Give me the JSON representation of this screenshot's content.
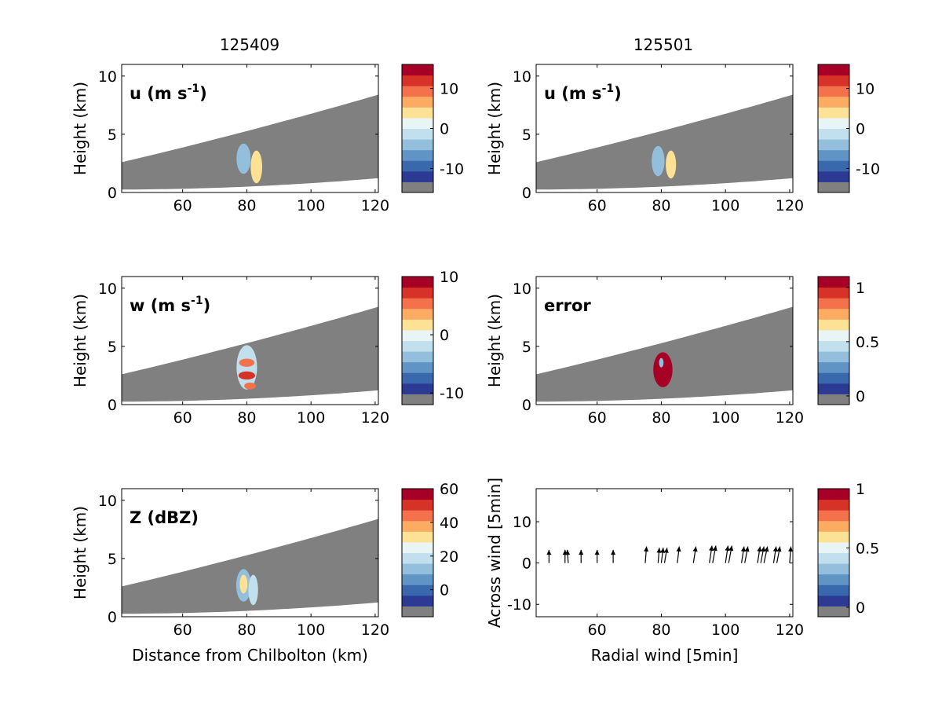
{
  "figure": {
    "column_titles": [
      "125409",
      "125501"
    ],
    "colors": {
      "background": "#ffffff",
      "no_data_gray": "#808080",
      "palette": [
        "#808080",
        "#2c3a94",
        "#3a68ad",
        "#6094c5",
        "#93bfdc",
        "#c1dfec",
        "#e9f4f4",
        "#fde296",
        "#fcab62",
        "#f3714b",
        "#d63228",
        "#a60026"
      ]
    }
  },
  "chart_data": [
    {
      "type": "heatmap",
      "panel": "top-left",
      "label": "u (m s-1)",
      "label_main": "u (m s",
      "label_sup": "-1",
      "label_end": ")",
      "ylabel": "Height (km)",
      "xlabel": "",
      "xlim": [
        41,
        121
      ],
      "ylim": [
        0,
        11
      ],
      "xticks": [
        60,
        80,
        100,
        120
      ],
      "yticks": [
        0,
        5,
        10
      ],
      "colorbar": {
        "range": [
          -16,
          16
        ],
        "ticks": [
          10,
          0,
          -10
        ]
      },
      "features": [
        {
          "cx": 79,
          "cy": 2.9,
          "rx": 2.2,
          "ry": 1.3,
          "value": -3
        },
        {
          "cx": 83,
          "cy": 2.2,
          "rx": 1.8,
          "ry": 1.4,
          "value": 3
        }
      ]
    },
    {
      "type": "heatmap",
      "panel": "top-right",
      "label": "u (m s-1)",
      "label_main": "u (m s",
      "label_sup": "-1",
      "label_end": ")",
      "ylabel": "Height (km)",
      "xlabel": "",
      "xlim": [
        41,
        121
      ],
      "ylim": [
        0,
        11
      ],
      "xticks": [
        60,
        80,
        100,
        120
      ],
      "yticks": [
        0,
        5,
        10
      ],
      "colorbar": {
        "range": [
          -16,
          16
        ],
        "ticks": [
          10,
          0,
          -10
        ]
      },
      "features": [
        {
          "cx": 79,
          "cy": 2.7,
          "rx": 2.0,
          "ry": 1.3,
          "value": -3
        },
        {
          "cx": 83,
          "cy": 2.4,
          "rx": 1.6,
          "ry": 1.2,
          "value": 3
        }
      ]
    },
    {
      "type": "heatmap",
      "panel": "middle-left",
      "label": "w (m s-1)",
      "label_main": "w (m s",
      "label_sup": "-1",
      "label_end": ")",
      "ylabel": "Height (km)",
      "xlabel": "",
      "xlim": [
        41,
        121
      ],
      "ylim": [
        0,
        11
      ],
      "xticks": [
        60,
        80,
        100,
        120
      ],
      "yticks": [
        0,
        5,
        10
      ],
      "colorbar": {
        "range": [
          -12,
          10
        ],
        "ticks": [
          10,
          0,
          -10
        ]
      },
      "features": [
        {
          "cx": 80,
          "cy": 3.2,
          "rx": 3.2,
          "ry": 1.9,
          "value": -2
        },
        {
          "cx": 80,
          "cy": 3.6,
          "rx": 2.4,
          "ry": 0.35,
          "value": 6
        },
        {
          "cx": 80,
          "cy": 2.5,
          "rx": 2.6,
          "ry": 0.35,
          "value": 7
        },
        {
          "cx": 81,
          "cy": 1.6,
          "rx": 1.8,
          "ry": 0.3,
          "value": 5
        }
      ]
    },
    {
      "type": "heatmap",
      "panel": "middle-right",
      "label": "error",
      "label_main": "error",
      "label_sup": "",
      "label_end": "",
      "ylabel": "Height (km)",
      "xlabel": "",
      "xlim": [
        41,
        121
      ],
      "ylim": [
        0,
        11
      ],
      "xticks": [
        60,
        80,
        100,
        120
      ],
      "yticks": [
        0,
        5,
        10
      ],
      "colorbar": {
        "range": [
          -0.08,
          1.1
        ],
        "ticks": [
          1,
          0.5,
          0
        ]
      },
      "features": [
        {
          "cx": 80.5,
          "cy": 3.0,
          "rx": 3.0,
          "ry": 1.5,
          "value": 1.05
        },
        {
          "cx": 80,
          "cy": 3.6,
          "rx": 0.7,
          "ry": 0.4,
          "value": 0.35
        }
      ]
    },
    {
      "type": "heatmap",
      "panel": "bottom-left",
      "label": "Z (dBZ)",
      "label_main": "Z (dBZ)",
      "label_sup": "",
      "label_end": "",
      "ylabel": "Height (km)",
      "xlabel": "Distance from Chilbolton (km)",
      "xlim": [
        41,
        121
      ],
      "ylim": [
        0,
        11
      ],
      "xticks": [
        60,
        80,
        100,
        120
      ],
      "yticks": [
        0,
        5,
        10
      ],
      "colorbar": {
        "range": [
          -16,
          60
        ],
        "ticks": [
          60,
          40,
          20,
          0
        ]
      },
      "features": [
        {
          "cx": 79,
          "cy": 2.7,
          "rx": 2.3,
          "ry": 1.4,
          "value": 12
        },
        {
          "cx": 82,
          "cy": 2.3,
          "rx": 1.5,
          "ry": 1.3,
          "value": 20
        },
        {
          "cx": 79,
          "cy": 2.8,
          "rx": 1.2,
          "ry": 0.8,
          "value": 30
        }
      ]
    },
    {
      "type": "scatter",
      "panel": "bottom-right",
      "label": "",
      "ylabel": "Across wind [5min]",
      "xlabel": "Radial wind [5min]",
      "xlim": [
        41,
        121
      ],
      "ylim": [
        -13,
        18
      ],
      "xticks": [
        60,
        80,
        100,
        120
      ],
      "yticks": [
        -10,
        0,
        10
      ],
      "colorbar": {
        "range": [
          -0.08,
          1
        ],
        "ticks": [
          1,
          0.5,
          0
        ]
      },
      "arrows": {
        "base_y": 0,
        "x": [
          45,
          50,
          51,
          55,
          60,
          65,
          75,
          79,
          80,
          81,
          85,
          90,
          95,
          96,
          100,
          101,
          105,
          106,
          110,
          111,
          112,
          115,
          116,
          120
        ],
        "u": [
          0,
          0,
          -0.3,
          0,
          0,
          0,
          0.4,
          0.4,
          0.6,
          0.8,
          0.6,
          0.8,
          0.8,
          1.0,
          0.8,
          1.0,
          0.8,
          1.0,
          0.8,
          1.0,
          1.1,
          0.8,
          1.0,
          0.4
        ],
        "v": [
          3.2,
          3.2,
          3.2,
          3.2,
          3.2,
          3.2,
          4.0,
          3.7,
          3.7,
          3.7,
          4.0,
          4.0,
          4.2,
          4.2,
          4.2,
          4.2,
          4.0,
          4.0,
          4.0,
          4.0,
          4.0,
          4.0,
          4.0,
          4.0
        ]
      }
    }
  ]
}
